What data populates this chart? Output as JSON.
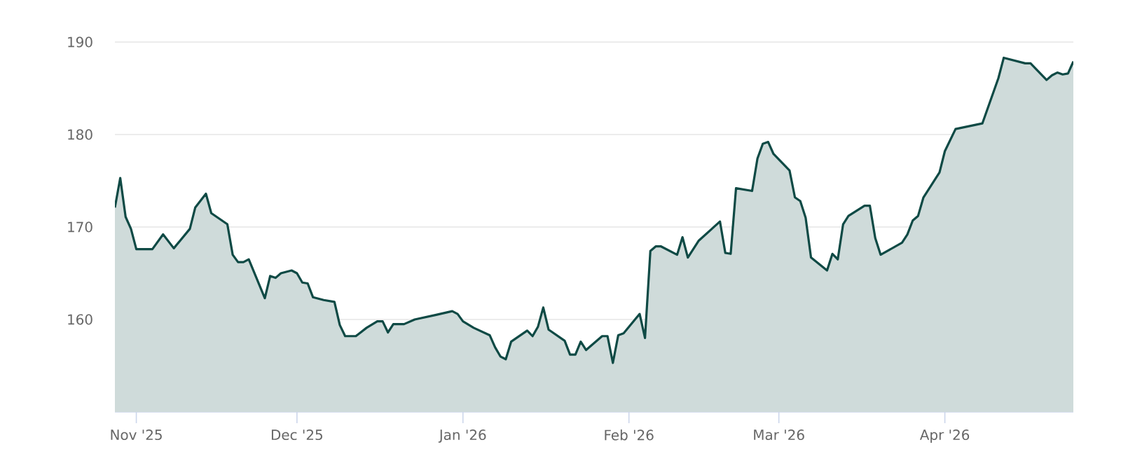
{
  "chart_data": {
    "type": "area",
    "color": "#0f4a45",
    "grid": "y",
    "x": [
      "2025-10-28",
      "2025-10-29",
      "2025-10-30",
      "2025-10-31",
      "2025-11-01",
      "2025-11-04",
      "2025-11-06",
      "2025-11-08",
      "2025-11-11",
      "2025-11-12",
      "2025-11-14",
      "2025-11-15",
      "2025-11-18",
      "2025-11-19",
      "2025-11-20",
      "2025-11-21",
      "2025-11-22",
      "2025-11-25",
      "2025-11-26",
      "2025-11-27",
      "2025-11-28",
      "2025-11-30",
      "2025-12-01",
      "2025-12-02",
      "2025-12-03",
      "2025-12-04",
      "2025-12-06",
      "2025-12-08",
      "2025-12-09",
      "2025-12-10",
      "2025-12-12",
      "2025-12-14",
      "2025-12-16",
      "2025-12-17",
      "2025-12-18",
      "2025-12-19",
      "2025-12-21",
      "2025-12-23",
      "2025-12-27",
      "2025-12-30",
      "2025-12-31",
      "2026-01-01",
      "2026-01-03",
      "2026-01-06",
      "2026-01-07",
      "2026-01-08",
      "2026-01-09",
      "2026-01-10",
      "2026-01-13",
      "2026-01-14",
      "2026-01-15",
      "2026-01-16",
      "2026-01-17",
      "2026-01-20",
      "2026-01-21",
      "2026-01-22",
      "2026-01-23",
      "2026-01-24",
      "2026-01-27",
      "2026-01-28",
      "2026-01-29",
      "2026-01-30",
      "2026-01-31",
      "2026-02-03",
      "2026-02-04",
      "2026-02-05",
      "2026-02-06",
      "2026-02-07",
      "2026-02-10",
      "2026-02-11",
      "2026-02-12",
      "2026-02-14",
      "2026-02-18",
      "2026-02-19",
      "2026-02-20",
      "2026-02-21",
      "2026-02-24",
      "2026-02-25",
      "2026-02-26",
      "2026-02-27",
      "2026-02-28",
      "2026-03-03",
      "2026-03-04",
      "2026-03-05",
      "2026-03-06",
      "2026-03-07",
      "2026-03-10",
      "2026-03-11",
      "2026-03-12",
      "2026-03-13",
      "2026-03-14",
      "2026-03-17",
      "2026-03-18",
      "2026-03-19",
      "2026-03-20",
      "2026-03-24",
      "2026-03-25",
      "2026-03-26",
      "2026-03-27",
      "2026-03-28",
      "2026-03-31",
      "2026-04-01",
      "2026-04-03",
      "2026-04-08",
      "2026-04-11",
      "2026-04-12",
      "2026-04-14",
      "2026-04-16",
      "2026-04-17",
      "2026-04-20",
      "2026-04-21",
      "2026-04-22",
      "2026-04-23",
      "2026-04-24",
      "2026-04-25"
    ],
    "values": [
      172.1,
      175.3,
      171.1,
      169.8,
      167.6,
      167.6,
      169.2,
      167.7,
      169.8,
      172.1,
      173.6,
      171.5,
      170.3,
      167.0,
      166.2,
      166.2,
      166.5,
      162.3,
      164.7,
      164.5,
      165.0,
      165.3,
      165.0,
      164.0,
      163.9,
      162.4,
      162.1,
      161.9,
      159.4,
      158.2,
      158.2,
      159.1,
      159.8,
      159.8,
      158.6,
      159.5,
      159.5,
      160.0,
      160.5,
      160.9,
      160.6,
      159.8,
      159.1,
      158.3,
      157.0,
      156.0,
      155.7,
      157.6,
      158.8,
      158.2,
      159.2,
      161.3,
      158.9,
      157.7,
      156.2,
      156.2,
      157.6,
      156.7,
      158.2,
      158.2,
      155.3,
      158.3,
      158.5,
      160.6,
      158.0,
      167.4,
      167.9,
      167.9,
      167.0,
      168.9,
      166.7,
      168.5,
      170.6,
      167.2,
      167.1,
      174.2,
      173.9,
      177.4,
      179.0,
      179.2,
      177.9,
      176.1,
      173.2,
      172.8,
      171.0,
      166.7,
      165.3,
      167.1,
      166.5,
      170.3,
      171.2,
      172.3,
      172.3,
      168.8,
      167.0,
      168.3,
      169.2,
      170.7,
      171.2,
      173.2,
      175.9,
      178.2,
      180.6,
      181.2,
      186.1,
      188.3,
      188.0,
      187.7,
      187.7,
      185.9,
      186.4,
      186.7,
      186.5,
      186.6,
      187.9
    ],
    "xlim": [
      "2025-10-28",
      "2026-04-25"
    ],
    "xticks": [
      {
        "value": "2025-11-01",
        "label": "Nov '25"
      },
      {
        "value": "2025-12-01",
        "label": "Dec '25"
      },
      {
        "value": "2026-01-01",
        "label": "Jan '26"
      },
      {
        "value": "2026-02-01",
        "label": "Feb '26"
      },
      {
        "value": "2026-03-01",
        "label": "Mar '26"
      },
      {
        "value": "2026-04-01",
        "label": "Apr '26"
      }
    ],
    "ylim": [
      150,
      190
    ],
    "yticks": [
      160,
      170,
      180,
      190
    ]
  }
}
